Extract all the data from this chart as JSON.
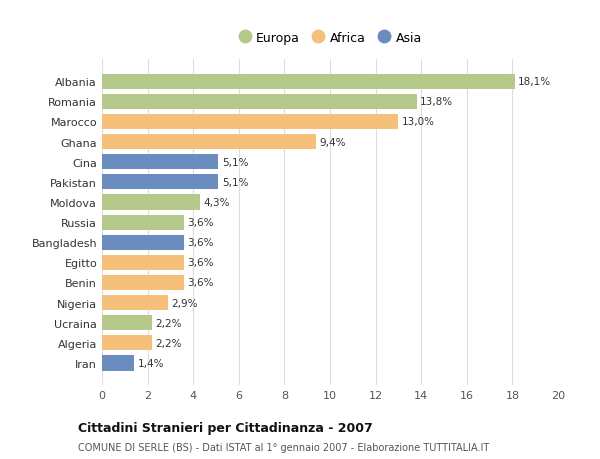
{
  "countries": [
    "Albania",
    "Romania",
    "Marocco",
    "Ghana",
    "Cina",
    "Pakistan",
    "Moldova",
    "Russia",
    "Bangladesh",
    "Egitto",
    "Benin",
    "Nigeria",
    "Ucraina",
    "Algeria",
    "Iran"
  ],
  "values": [
    18.1,
    13.8,
    13.0,
    9.4,
    5.1,
    5.1,
    4.3,
    3.6,
    3.6,
    3.6,
    3.6,
    2.9,
    2.2,
    2.2,
    1.4
  ],
  "labels": [
    "18,1%",
    "13,8%",
    "13,0%",
    "9,4%",
    "5,1%",
    "5,1%",
    "4,3%",
    "3,6%",
    "3,6%",
    "3,6%",
    "3,6%",
    "2,9%",
    "2,2%",
    "2,2%",
    "1,4%"
  ],
  "continents": [
    "Europa",
    "Europa",
    "Africa",
    "Africa",
    "Asia",
    "Asia",
    "Europa",
    "Europa",
    "Asia",
    "Africa",
    "Africa",
    "Africa",
    "Europa",
    "Africa",
    "Asia"
  ],
  "colors": {
    "Europa": "#b5c98a",
    "Africa": "#f5c07a",
    "Asia": "#6b8cbf"
  },
  "title": "Cittadini Stranieri per Cittadinanza - 2007",
  "subtitle": "COMUNE DI SERLE (BS) - Dati ISTAT al 1° gennaio 2007 - Elaborazione TUTTITALIA.IT",
  "xlim": [
    0,
    20
  ],
  "xticks": [
    0,
    2,
    4,
    6,
    8,
    10,
    12,
    14,
    16,
    18,
    20
  ],
  "background_color": "#ffffff",
  "grid_color": "#dddddd",
  "bar_height": 0.75
}
